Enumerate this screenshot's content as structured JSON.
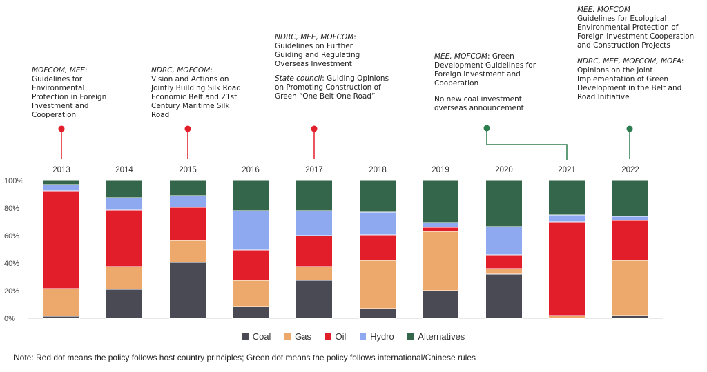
{
  "chart_data": {
    "type": "bar",
    "stacked": true,
    "categories": [
      "2013",
      "2014",
      "2015",
      "2016",
      "2017",
      "2018",
      "2019",
      "2020",
      "2021",
      "2022"
    ],
    "yticks": [
      "0%",
      "20%",
      "40%",
      "60%",
      "80%",
      "100%"
    ],
    "ylim": [
      0,
      100
    ],
    "grid": false,
    "legend_position": "bottom",
    "series": [
      {
        "name": "Coal",
        "color": "#4a4a55",
        "values": [
          1.5,
          21,
          40.5,
          8.5,
          27.5,
          7,
          20,
          32,
          0,
          2
        ]
      },
      {
        "name": "Gas",
        "color": "#eca96b",
        "values": [
          20,
          16.5,
          16,
          19,
          10,
          35,
          43,
          4,
          2,
          40
        ]
      },
      {
        "name": "Oil",
        "color": "#e31e2b",
        "values": [
          71,
          41,
          24,
          22,
          22.5,
          18.5,
          3,
          10,
          68,
          29
        ]
      },
      {
        "name": "Hydro",
        "color": "#8ea9ef",
        "values": [
          4.5,
          9,
          8.5,
          28.5,
          18,
          16.5,
          3.5,
          20.5,
          5,
          3
        ]
      },
      {
        "name": "Alternatives",
        "color": "#33664a",
        "values": [
          3,
          12.5,
          11,
          22,
          22,
          23,
          30.5,
          33.5,
          25,
          26
        ]
      }
    ]
  },
  "annotations": [
    {
      "id": "a2013",
      "dot": "red",
      "lines": [
        {
          "agency": "MOFCOM, MEE",
          "sep": ":",
          "text": "Guidelines for Environmental Protection in Foreign Investment and Cooperation"
        }
      ]
    },
    {
      "id": "a2015",
      "dot": "red",
      "lines": [
        {
          "agency": "NDRC, MOFCOM",
          "sep": ":",
          "text": "Vision and Actions on Jointly Building Silk Road Economic Belt and 21st Century Maritime Silk Road"
        }
      ]
    },
    {
      "id": "a2017",
      "dot": "red",
      "lines": [
        {
          "agency": "NDRC, MEE, MOFCOM",
          "sep": ":",
          "text": "Guidelines on Further Guiding and Regulating Overseas Investment"
        },
        {
          "agency": "State council",
          "sep": ":",
          "text": "Guiding Opinions on Promoting Construction of Green “One Belt One Road”"
        }
      ]
    },
    {
      "id": "a2021",
      "dot": "green",
      "lines": [
        {
          "agency": "MEE, MOFCOM",
          "sep": ":",
          "text": "Green Development Guidelines for Foreign Investment and Cooperation"
        },
        {
          "agency": "",
          "sep": "",
          "text": "No new coal investment overseas announcement"
        }
      ]
    },
    {
      "id": "a2022",
      "dot": "green",
      "lines": [
        {
          "agency": "MEE, MOFCOM",
          "sep": "",
          "text": "Guidelines for Ecological Environmental Protection of Foreign Investment Cooperation and Construction Projects"
        },
        {
          "agency": "NDRC, MEE, MOFCOM, MOFA",
          "sep": ":",
          "text": "Opinions on the Joint Implementation of Green Development in the Belt and Road Initiative"
        }
      ]
    }
  ],
  "note": "Note: Red dot means the policy follows host country principles; Green dot means the policy follows international/Chinese rules",
  "colors": {
    "red_dot": "#e31e2b",
    "green_dot": "#2e7d4f",
    "axis": "#cccccc",
    "text": "#333333"
  }
}
